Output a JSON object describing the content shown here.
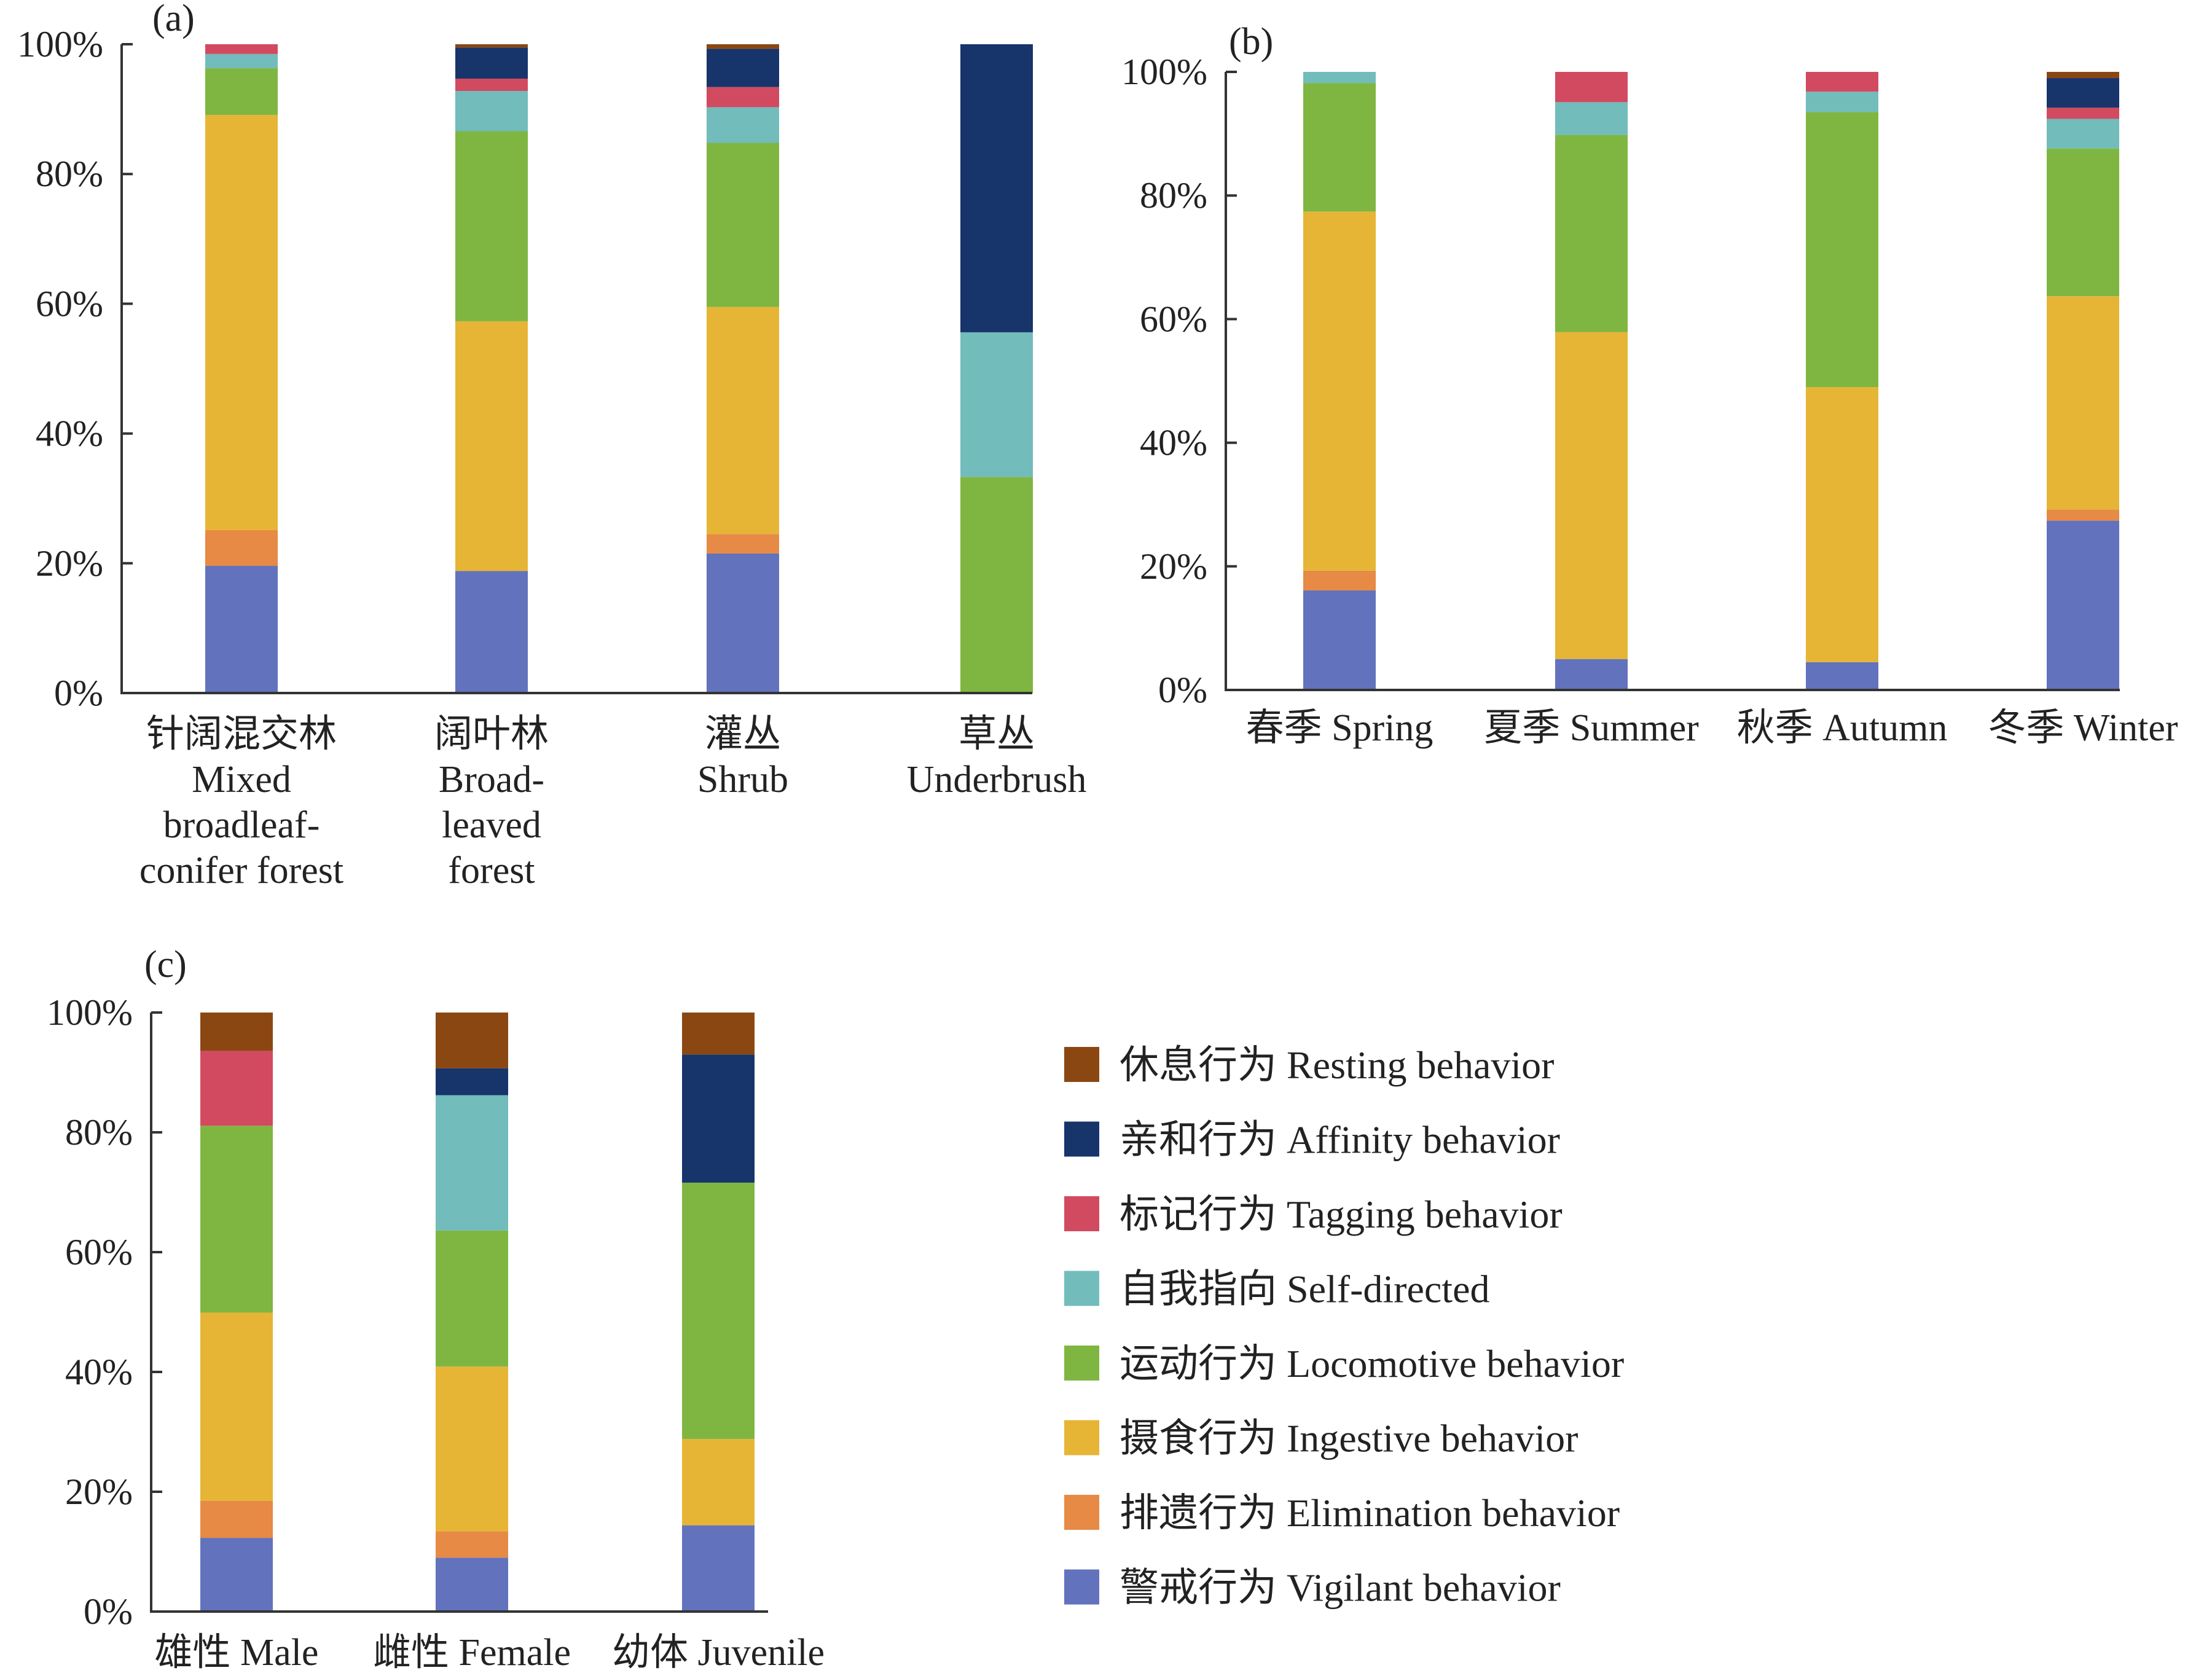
{
  "behaviors": [
    {
      "key": "vigilant",
      "label": "警戒行为 Vigilant behavior",
      "color": "#6272bd"
    },
    {
      "key": "elimination",
      "label": "排遗行为 Elimination behavior",
      "color": "#e68a45"
    },
    {
      "key": "ingestive",
      "label": "摄食行为 Ingestive behavior",
      "color": "#e6b535"
    },
    {
      "key": "locomotive",
      "label": "运动行为 Locomotive behavior",
      "color": "#7fb641"
    },
    {
      "key": "selfdirected",
      "label": "自我指向 Self-directed",
      "color": "#72bcbc"
    },
    {
      "key": "tagging",
      "label": "标记行为 Tagging behavior",
      "color": "#d24a60"
    },
    {
      "key": "affinity",
      "label": "亲和行为 Affinity behavior",
      "color": "#17346b"
    },
    {
      "key": "resting",
      "label": "休息行为 Resting behavior",
      "color": "#8b4712"
    }
  ],
  "chart_data": [
    {
      "panel": "(a)",
      "type": "bar",
      "stacked": true,
      "yticks": [
        "0%",
        "20%",
        "40%",
        "60%",
        "80%",
        "100%"
      ],
      "ylim": [
        0,
        100
      ],
      "categories": [
        [
          "针阔混交林",
          "Mixed",
          "broadleaf-",
          "conifer forest"
        ],
        [
          "阔叶林",
          "Broad-",
          "leaved",
          "forest"
        ],
        [
          "灌丛",
          "Shrub"
        ],
        [
          "草丛",
          "Underbrush"
        ]
      ],
      "series": [
        {
          "key": "vigilant",
          "values": [
            19.6,
            18.8,
            21.5,
            0
          ]
        },
        {
          "key": "elimination",
          "values": [
            5.5,
            0,
            3.0,
            0
          ]
        },
        {
          "key": "ingestive",
          "values": [
            64.0,
            38.5,
            35.0,
            0
          ]
        },
        {
          "key": "locomotive",
          "values": [
            7.2,
            29.3,
            25.3,
            33.3
          ]
        },
        {
          "key": "selfdirected",
          "values": [
            2.2,
            6.2,
            5.5,
            22.3
          ]
        },
        {
          "key": "tagging",
          "values": [
            1.5,
            1.9,
            3.1,
            0
          ]
        },
        {
          "key": "affinity",
          "values": [
            0,
            4.8,
            5.9,
            44.4
          ]
        },
        {
          "key": "resting",
          "values": [
            0,
            0.5,
            0.7,
            0
          ]
        }
      ]
    },
    {
      "panel": "(b)",
      "type": "bar",
      "stacked": true,
      "yticks": [
        "0%",
        "20%",
        "40%",
        "60%",
        "80%",
        "100%"
      ],
      "ylim": [
        0,
        100
      ],
      "categories": [
        [
          "春季 Spring"
        ],
        [
          "夏季 Summer"
        ],
        [
          "秋季 Autumn"
        ],
        [
          "冬季 Winter"
        ]
      ],
      "series": [
        {
          "key": "vigilant",
          "values": [
            16.1,
            5.0,
            4.5,
            27.4
          ]
        },
        {
          "key": "elimination",
          "values": [
            3.2,
            0,
            0,
            1.8
          ]
        },
        {
          "key": "ingestive",
          "values": [
            58.1,
            52.9,
            44.5,
            34.5
          ]
        },
        {
          "key": "locomotive",
          "values": [
            20.8,
            31.9,
            44.5,
            23.9
          ]
        },
        {
          "key": "selfdirected",
          "values": [
            1.8,
            5.3,
            3.3,
            4.8
          ]
        },
        {
          "key": "tagging",
          "values": [
            0,
            4.9,
            3.2,
            1.8
          ]
        },
        {
          "key": "affinity",
          "values": [
            0,
            0,
            0,
            4.8
          ]
        },
        {
          "key": "resting",
          "values": [
            0,
            0,
            0,
            1.0
          ]
        }
      ]
    },
    {
      "panel": "(c)",
      "type": "bar",
      "stacked": true,
      "yticks": [
        "0%",
        "20%",
        "40%",
        "60%",
        "80%",
        "100%"
      ],
      "ylim": [
        0,
        100
      ],
      "categories": [
        [
          "雄性 Male"
        ],
        [
          "雌性 Female"
        ],
        [
          "幼体 Juvenile"
        ]
      ],
      "series": [
        {
          "key": "vigilant",
          "values": [
            12.3,
            9.0,
            14.4
          ]
        },
        {
          "key": "elimination",
          "values": [
            6.2,
            4.4,
            0
          ]
        },
        {
          "key": "ingestive",
          "values": [
            31.4,
            27.5,
            14.4
          ]
        },
        {
          "key": "locomotive",
          "values": [
            31.2,
            22.7,
            42.8
          ]
        },
        {
          "key": "selfdirected",
          "values": [
            0,
            22.6,
            0
          ]
        },
        {
          "key": "tagging",
          "values": [
            12.5,
            0,
            0
          ]
        },
        {
          "key": "affinity",
          "values": [
            0,
            4.5,
            21.4
          ]
        },
        {
          "key": "resting",
          "values": [
            6.4,
            9.3,
            7.0
          ]
        }
      ]
    }
  ]
}
